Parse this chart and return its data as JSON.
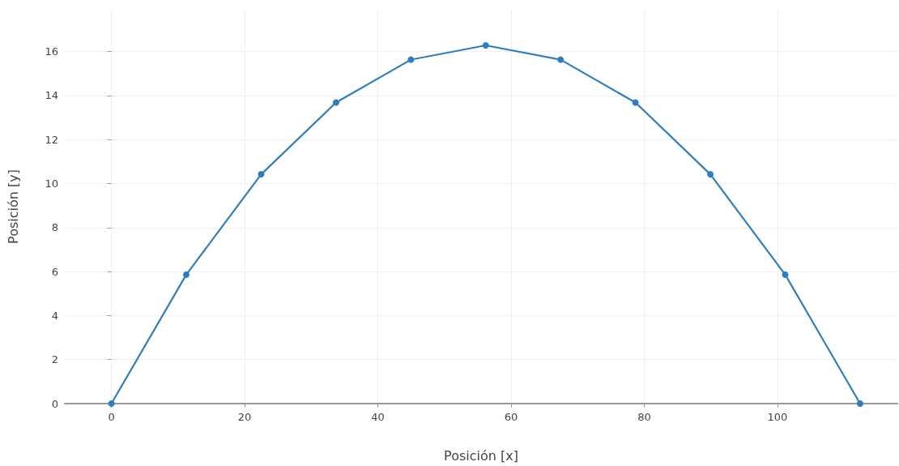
{
  "chart_data": {
    "type": "line",
    "xlabel": "Posición [x]",
    "ylabel": "Posición [y]",
    "x": [
      0,
      11.24,
      22.48,
      33.72,
      44.96,
      56.2,
      67.44,
      78.68,
      89.92,
      101.16,
      112.4
    ],
    "series": [
      {
        "color": "#2e7ebf",
        "values": [
          0,
          5.86,
          10.42,
          13.68,
          15.63,
          16.28,
          15.63,
          13.68,
          10.42,
          5.86,
          0
        ]
      }
    ],
    "xlim": [
      -7,
      118
    ],
    "ylim": [
      0,
      17.9
    ],
    "xticks": [
      0,
      20,
      40,
      60,
      80,
      100
    ],
    "yticks": [
      0,
      2,
      4,
      6,
      8,
      10,
      12,
      14,
      16
    ],
    "grid": true,
    "marker": "circle",
    "line_style": "solid"
  }
}
